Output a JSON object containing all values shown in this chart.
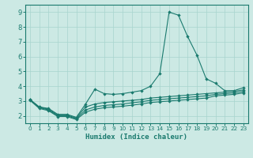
{
  "xlabel": "Humidex (Indice chaleur)",
  "xlim": [
    -0.5,
    23.5
  ],
  "ylim": [
    1.5,
    9.5
  ],
  "xticks": [
    0,
    1,
    2,
    3,
    4,
    5,
    6,
    7,
    8,
    9,
    10,
    11,
    12,
    13,
    14,
    15,
    16,
    17,
    18,
    19,
    20,
    21,
    22,
    23
  ],
  "yticks": [
    2,
    3,
    4,
    5,
    6,
    7,
    8,
    9
  ],
  "background_color": "#cce9e4",
  "grid_color": "#a8d4ce",
  "line_color": "#1a7a6e",
  "x": [
    0,
    1,
    2,
    3,
    4,
    5,
    6,
    7,
    8,
    9,
    10,
    11,
    12,
    13,
    14,
    15,
    16,
    17,
    18,
    19,
    20,
    21,
    22,
    23
  ],
  "y_main": [
    3.1,
    2.6,
    2.5,
    2.1,
    2.1,
    1.9,
    2.8,
    3.8,
    3.5,
    3.45,
    3.5,
    3.6,
    3.7,
    4.0,
    4.85,
    9.0,
    8.8,
    7.35,
    6.1,
    4.5,
    4.2,
    3.7,
    3.7,
    3.9
  ],
  "y_line2": [
    3.1,
    2.6,
    2.45,
    2.05,
    2.05,
    1.85,
    2.6,
    2.8,
    2.9,
    2.95,
    3.0,
    3.05,
    3.1,
    3.2,
    3.25,
    3.3,
    3.35,
    3.4,
    3.45,
    3.5,
    3.55,
    3.6,
    3.65,
    3.75
  ],
  "y_line3": [
    3.1,
    2.55,
    2.4,
    2.0,
    2.0,
    1.8,
    2.4,
    2.6,
    2.7,
    2.75,
    2.8,
    2.88,
    2.95,
    3.05,
    3.1,
    3.15,
    3.2,
    3.25,
    3.3,
    3.35,
    3.45,
    3.5,
    3.55,
    3.65
  ],
  "y_line4": [
    3.05,
    2.5,
    2.35,
    1.95,
    1.95,
    1.75,
    2.25,
    2.45,
    2.55,
    2.6,
    2.65,
    2.72,
    2.8,
    2.9,
    2.95,
    3.0,
    3.05,
    3.1,
    3.15,
    3.2,
    3.35,
    3.4,
    3.45,
    3.55
  ]
}
